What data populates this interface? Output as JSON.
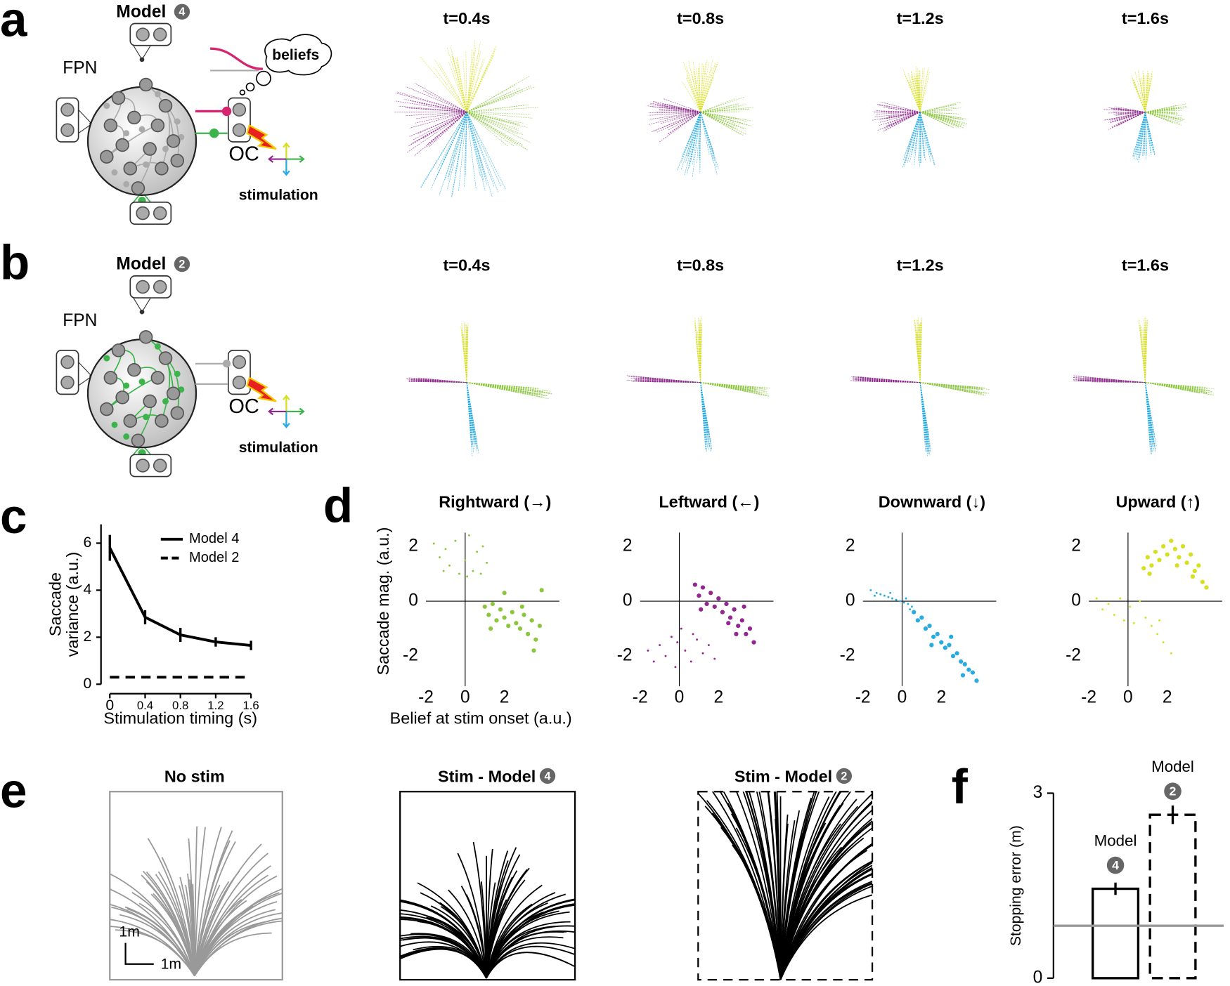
{
  "panel_labels": [
    "a",
    "b",
    "c",
    "d",
    "e",
    "f"
  ],
  "diagram_a": {
    "model": "Model",
    "badge": "4",
    "fpn": "FPN",
    "oc": "OC",
    "beliefs": "beliefs",
    "stimulation": "stimulation"
  },
  "diagram_b": {
    "model": "Model",
    "badge": "2",
    "fpn": "FPN",
    "oc": "OC",
    "stimulation": "stimulation"
  },
  "fan_titles_a": [
    "t=0.4s",
    "t=0.8s",
    "t=1.2s",
    "t=1.6s"
  ],
  "fan_titles_b": [
    "t=0.4s",
    "t=0.8s",
    "t=1.2s",
    "t=1.6s"
  ],
  "panel_e": {
    "titles": [
      "No stim",
      "Stim - Model",
      "Stim - Model"
    ],
    "badges": [
      "4",
      "2"
    ],
    "scale": [
      "1m",
      "1m"
    ]
  },
  "chart_data": [
    {
      "type": "line",
      "xlabel": "Stimulation timing (s)",
      "ylabel": [
        "Saccade",
        "variance (a.u.)"
      ],
      "x": [
        0,
        0.4,
        0.8,
        1.2,
        1.6
      ],
      "xlim": [
        -0.1,
        1.65
      ],
      "xticks": [
        0,
        0.4,
        0.8,
        1.2,
        1.6
      ],
      "ylim": [
        0,
        6.8
      ],
      "yticks": [
        0,
        2,
        4,
        6
      ],
      "series": [
        {
          "name": "Model 4",
          "color": "#000000",
          "linestyle": "solid",
          "values": [
            5.8,
            2.85,
            2.1,
            1.8,
            1.65
          ],
          "errors": [
            0.55,
            0.3,
            0.3,
            0.2,
            0.2
          ]
        },
        {
          "name": "Model 2",
          "color": "#000000",
          "linestyle": "dashed",
          "values": [
            0.3,
            0.3,
            0.3,
            0.3,
            0.3
          ]
        }
      ]
    },
    {
      "type": "scatter",
      "title": "Rightward (→)",
      "xlabel": "Belief at stim onset (a.u.)",
      "ylabel": "Saccade mag. (a.u.)",
      "xlim": [
        -2,
        4.8
      ],
      "ylim": [
        -3.1,
        2.5
      ],
      "xticks": [
        -2,
        0,
        2
      ],
      "yticks": [
        -2,
        0,
        2
      ],
      "series": [
        {
          "color": "#8cc63f",
          "marker_size": "small",
          "x": [
            -1.6,
            -1.3,
            -1,
            -0.8,
            -0.5,
            -0.3,
            0,
            0.2,
            0.4,
            0.6,
            0.8,
            1.1,
            -1.1,
            0.1,
            0.9
          ],
          "y": [
            2.1,
            1.6,
            1.9,
            1.3,
            2.2,
            1,
            1.5,
            2.4,
            1.1,
            1.8,
            1,
            1.4,
            1.1,
            0.9,
            2
          ]
        },
        {
          "color": "#8cc63f",
          "marker_size": "large",
          "x": [
            1,
            1.2,
            1.4,
            1.6,
            1.8,
            2,
            2.2,
            2.4,
            2.6,
            2.8,
            3,
            3.2,
            3.4,
            3.6,
            3.8,
            2,
            3.9,
            3.5,
            1.3,
            2.9
          ],
          "y": [
            -0.2,
            -0.5,
            -0.1,
            -0.7,
            -0.3,
            -0.6,
            -0.9,
            -0.4,
            -0.8,
            -1,
            -0.5,
            -1.2,
            -0.7,
            -1.4,
            -0.9,
            0.3,
            0.4,
            -1.8,
            -1,
            -0.2
          ]
        }
      ]
    },
    {
      "type": "scatter",
      "title": "Leftward (←)",
      "xlim": [
        -2,
        4.8
      ],
      "ylim": [
        -3.1,
        2.5
      ],
      "xticks": [
        -2,
        0,
        2
      ],
      "yticks": [
        -2,
        0,
        2
      ],
      "series": [
        {
          "color": "#92278f",
          "marker_size": "small",
          "x": [
            -1.6,
            -1.3,
            -1,
            -0.7,
            -0.4,
            -0.2,
            0.1,
            0.3,
            0.6,
            0.9,
            1.2,
            1.5,
            1.8,
            -0.1,
            0.7
          ],
          "y": [
            -1.8,
            -2.2,
            -1.6,
            -2,
            -1.3,
            -2.4,
            -1,
            -1.8,
            -2.2,
            -1.4,
            -1.9,
            -1.6,
            -2.1,
            -1.5,
            -1.2
          ]
        },
        {
          "color": "#92278f",
          "marker_size": "large",
          "x": [
            0.8,
            1,
            1.2,
            1.4,
            1.6,
            1.8,
            2,
            2.2,
            2.4,
            2.6,
            2.8,
            3,
            3.2,
            3.4,
            3.6,
            3.8,
            2.5,
            1.1,
            3.3,
            2.9
          ],
          "y": [
            0.6,
            0.2,
            0.5,
            -0.1,
            0.3,
            -0.2,
            0.1,
            -0.4,
            -0.1,
            -0.6,
            -0.3,
            -0.9,
            -0.7,
            -1.2,
            -1,
            -1.5,
            -0.8,
            -0.3,
            -0.2,
            -1.2
          ]
        }
      ]
    },
    {
      "type": "scatter",
      "title": "Downward (↓)",
      "xlim": [
        -2,
        4.8
      ],
      "ylim": [
        -3.1,
        2.5
      ],
      "xticks": [
        -2,
        0,
        2
      ],
      "yticks": [
        -2,
        0,
        2
      ],
      "series": [
        {
          "color": "#29abe2",
          "marker_size": "small",
          "x": [
            -1.6,
            -1.3,
            -1.1,
            -0.9,
            -0.7,
            -0.5,
            -0.3,
            -0.1,
            0.1,
            0.3,
            0.5,
            -1.4,
            -0.6,
            0.2,
            0.4
          ],
          "y": [
            0.4,
            0.3,
            0.25,
            0.2,
            0.15,
            0.1,
            0.05,
            0,
            -0.05,
            -0.1,
            -0.2,
            0.2,
            0.3,
            0.1,
            -0.3
          ]
        },
        {
          "color": "#29abe2",
          "marker_size": "large",
          "x": [
            0.6,
            0.8,
            1,
            1.2,
            1.4,
            1.6,
            1.8,
            2,
            2.2,
            2.4,
            2.6,
            2.8,
            3,
            3.2,
            3.4,
            3.6,
            3.8,
            1.5,
            2.5,
            3.1
          ],
          "y": [
            -0.4,
            -0.7,
            -0.6,
            -1,
            -0.9,
            -1.3,
            -1.2,
            -1.5,
            -1.7,
            -1.6,
            -2,
            -1.9,
            -2.2,
            -2.3,
            -2.5,
            -2.6,
            -2.9,
            -1.6,
            -1.3,
            -2.7
          ]
        }
      ]
    },
    {
      "type": "scatter",
      "title": "Upward (↑)",
      "xlim": [
        -2,
        4.8
      ],
      "ylim": [
        -3.1,
        2.5
      ],
      "xticks": [
        -2,
        0,
        2
      ],
      "yticks": [
        -2,
        0,
        2
      ],
      "series": [
        {
          "color": "#d7df23",
          "marker_size": "small",
          "x": [
            -1.6,
            -1.3,
            -1,
            -0.7,
            -0.4,
            -0.2,
            0.1,
            0.3,
            0.6,
            0.9,
            1.2,
            1.5,
            1.8,
            2.2,
            1.6
          ],
          "y": [
            0.1,
            -0.3,
            -0.1,
            -0.5,
            0.1,
            -0.7,
            -0.2,
            -0.8,
            0,
            -0.6,
            -0.9,
            -1.2,
            -1.5,
            -1.9,
            -0.7
          ]
        },
        {
          "color": "#d7df23",
          "marker_size": "large",
          "x": [
            0.8,
            1,
            1.2,
            1.4,
            1.6,
            1.8,
            2,
            2.2,
            2.4,
            2.6,
            2.8,
            3,
            3.2,
            3.4,
            3.6,
            3.8,
            4,
            1.1,
            2.5,
            3.3
          ],
          "y": [
            1.2,
            1.6,
            1.3,
            1.8,
            1.5,
            2,
            1.7,
            2.2,
            1.9,
            1.6,
            2,
            1.4,
            1.7,
            1.1,
            1.3,
            0.7,
            0.5,
            1,
            1.3,
            0.9
          ]
        }
      ]
    },
    {
      "type": "bar",
      "ylabel": "Stopping error (m)",
      "categories": [
        "Model",
        "Model"
      ],
      "badges": [
        "4",
        "2"
      ],
      "values": [
        1.45,
        2.65
      ],
      "errors": [
        0.1,
        0.15
      ],
      "linestyles": [
        "solid",
        "dashed"
      ],
      "reference": 0.85,
      "reference_color": "#999999",
      "ylim": [
        0,
        3
      ],
      "yticks": [
        0,
        3
      ]
    }
  ]
}
